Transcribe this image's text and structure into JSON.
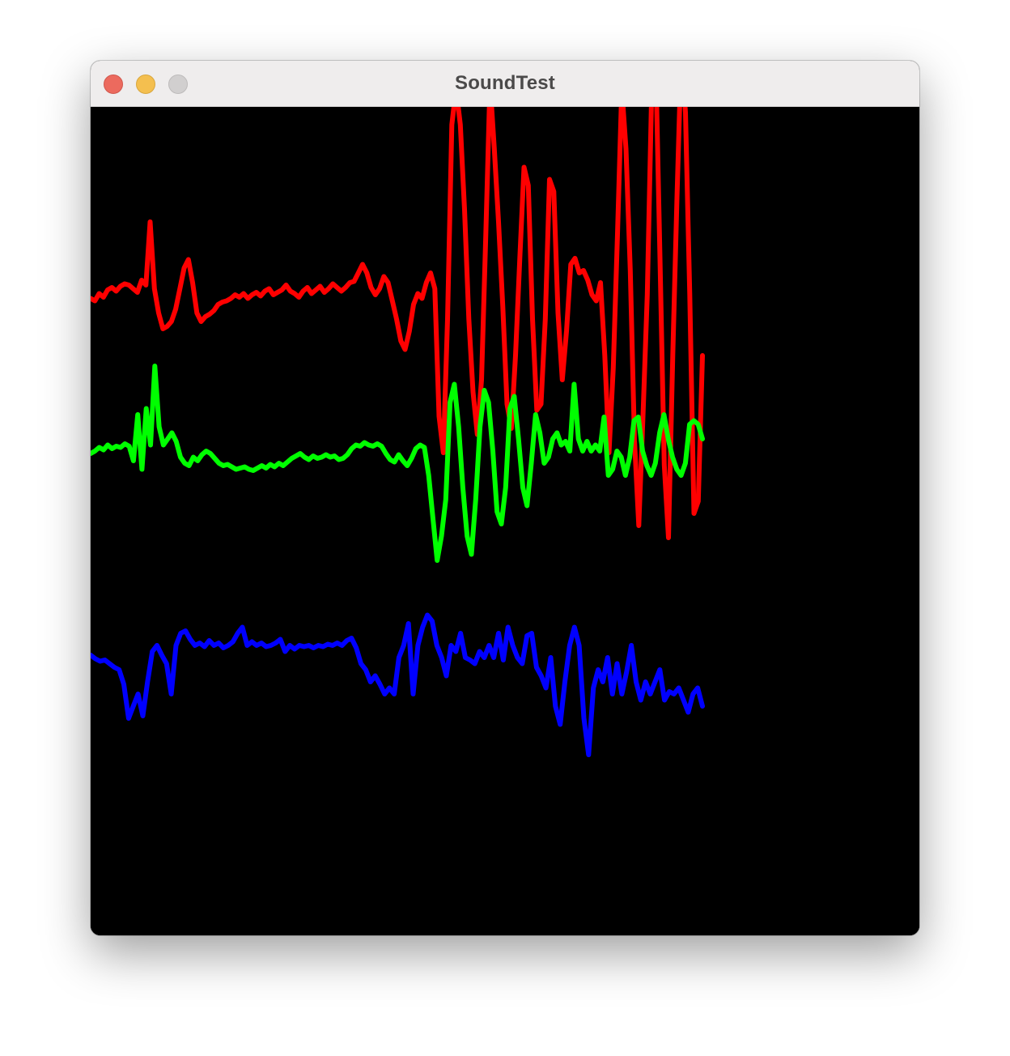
{
  "window": {
    "title": "SoundTest",
    "controls": {
      "close": "close-icon",
      "minimize": "minimize-icon",
      "zoom": "zoom-icon"
    }
  },
  "canvas": {
    "background": "#000000",
    "waveforms": [
      {
        "color": "#ff0000",
        "samples": [
          -0.03,
          -0.05,
          0.01,
          -0.02,
          0.04,
          0.06,
          0.03,
          0.07,
          0.09,
          0.08,
          0.05,
          0.02,
          0.12,
          0.08,
          0.6,
          0.05,
          -0.15,
          -0.28,
          -0.26,
          -0.22,
          -0.12,
          0.05,
          0.22,
          0.29,
          0.1,
          -0.15,
          -0.22,
          -0.18,
          -0.16,
          -0.13,
          -0.08,
          -0.06,
          -0.05,
          -0.03,
          0.0,
          -0.02,
          0.01,
          -0.03,
          0.0,
          0.02,
          -0.01,
          0.03,
          0.05,
          0.0,
          0.02,
          0.04,
          0.08,
          0.03,
          0.01,
          -0.02,
          0.03,
          0.06,
          0.01,
          0.04,
          0.07,
          0.02,
          0.05,
          0.09,
          0.06,
          0.03,
          0.06,
          0.1,
          0.11,
          0.18,
          0.25,
          0.18,
          0.06,
          0.0,
          0.05,
          0.15,
          0.1,
          -0.05,
          -0.2,
          -0.38,
          -0.45,
          -0.3,
          -0.08,
          0.01,
          -0.03,
          0.1,
          0.18,
          0.05,
          -1.0,
          -1.3,
          -0.2,
          1.4,
          1.7,
          1.4,
          0.7,
          -0.2,
          -0.8,
          -1.15,
          -0.7,
          0.5,
          1.75,
          1.2,
          0.6,
          -0.1,
          -0.9,
          -1.1,
          -0.5,
          0.3,
          1.05,
          0.9,
          -0.2,
          -0.95,
          -0.9,
          -0.2,
          0.95,
          0.85,
          -0.15,
          -0.7,
          -0.3,
          0.25,
          0.3,
          0.18,
          0.2,
          0.12,
          0.0,
          -0.05,
          0.1,
          -0.5,
          -1.3,
          -0.6,
          0.5,
          1.7,
          1.2,
          0.2,
          -1.2,
          -1.9,
          -1.0,
          0.0,
          1.6,
          1.9,
          0.3,
          -1.4,
          -2.0,
          -0.5,
          0.8,
          2.0,
          1.5,
          0.0,
          -1.8,
          -1.7,
          -0.5
        ]
      },
      {
        "color": "#00ff00",
        "samples": [
          -0.02,
          0.0,
          0.03,
          0.01,
          0.05,
          0.02,
          0.04,
          0.03,
          0.06,
          0.04,
          -0.08,
          0.3,
          -0.15,
          0.35,
          0.05,
          0.7,
          0.2,
          0.05,
          0.1,
          0.15,
          0.08,
          -0.05,
          -0.1,
          -0.12,
          -0.05,
          -0.08,
          -0.03,
          0.0,
          -0.02,
          -0.06,
          -0.1,
          -0.12,
          -0.11,
          -0.13,
          -0.15,
          -0.14,
          -0.13,
          -0.15,
          -0.16,
          -0.14,
          -0.12,
          -0.14,
          -0.11,
          -0.13,
          -0.1,
          -0.12,
          -0.09,
          -0.06,
          -0.04,
          -0.02,
          -0.05,
          -0.07,
          -0.04,
          -0.06,
          -0.05,
          -0.03,
          -0.05,
          -0.04,
          -0.07,
          -0.06,
          -0.03,
          0.02,
          0.05,
          0.04,
          0.07,
          0.05,
          0.04,
          0.06,
          0.04,
          -0.02,
          -0.07,
          -0.09,
          -0.03,
          -0.08,
          -0.12,
          -0.06,
          0.02,
          0.05,
          0.03,
          -0.2,
          -0.55,
          -0.9,
          -0.7,
          -0.4,
          0.4,
          0.55,
          0.2,
          -0.3,
          -0.7,
          -0.85,
          -0.4,
          0.2,
          0.5,
          0.4,
          0.0,
          -0.5,
          -0.6,
          -0.3,
          0.35,
          0.45,
          0.1,
          -0.3,
          -0.45,
          -0.1,
          0.3,
          0.15,
          -0.1,
          -0.05,
          0.1,
          0.15,
          0.05,
          0.08,
          0.0,
          0.55,
          0.1,
          0.0,
          0.08,
          0.0,
          0.05,
          0.0,
          0.28,
          -0.2,
          -0.15,
          0.0,
          -0.05,
          -0.2,
          -0.05,
          0.25,
          0.28,
          0.0,
          -0.12,
          -0.2,
          -0.1,
          0.15,
          0.3,
          0.1,
          -0.05,
          -0.15,
          -0.2,
          -0.1,
          0.22,
          0.25,
          0.22,
          0.1
        ]
      },
      {
        "color": "#0000ff",
        "samples": [
          0.02,
          -0.01,
          -0.03,
          -0.02,
          -0.05,
          -0.08,
          -0.1,
          -0.22,
          -0.5,
          -0.4,
          -0.3,
          -0.48,
          -0.2,
          0.05,
          0.1,
          0.02,
          -0.05,
          -0.3,
          0.1,
          0.2,
          0.22,
          0.15,
          0.1,
          0.12,
          0.09,
          0.14,
          0.1,
          0.12,
          0.08,
          0.1,
          0.13,
          0.2,
          0.25,
          0.1,
          0.13,
          0.1,
          0.12,
          0.09,
          0.1,
          0.12,
          0.15,
          0.05,
          0.1,
          0.07,
          0.1,
          0.09,
          0.1,
          0.08,
          0.1,
          0.09,
          0.11,
          0.1,
          0.12,
          0.1,
          0.14,
          0.16,
          0.08,
          -0.05,
          -0.1,
          -0.2,
          -0.15,
          -0.22,
          -0.3,
          -0.25,
          -0.3,
          0.0,
          0.1,
          0.28,
          -0.3,
          0.1,
          0.25,
          0.35,
          0.3,
          0.1,
          0.0,
          -0.15,
          0.1,
          0.05,
          0.2,
          0.0,
          -0.02,
          -0.05,
          0.05,
          0.0,
          0.1,
          0.0,
          0.2,
          -0.02,
          0.25,
          0.1,
          0.0,
          -0.05,
          0.18,
          0.2,
          -0.08,
          -0.15,
          -0.25,
          0.0,
          -0.4,
          -0.55,
          -0.2,
          0.1,
          0.25,
          0.1,
          -0.5,
          -0.8,
          -0.25,
          -0.1,
          -0.2,
          0.0,
          -0.3,
          -0.05,
          -0.3,
          -0.12,
          0.1,
          -0.2,
          -0.35,
          -0.2,
          -0.3,
          -0.2,
          -0.1,
          -0.35,
          -0.28,
          -0.3,
          -0.25,
          -0.35,
          -0.45,
          -0.3,
          -0.25,
          -0.4
        ]
      }
    ]
  }
}
